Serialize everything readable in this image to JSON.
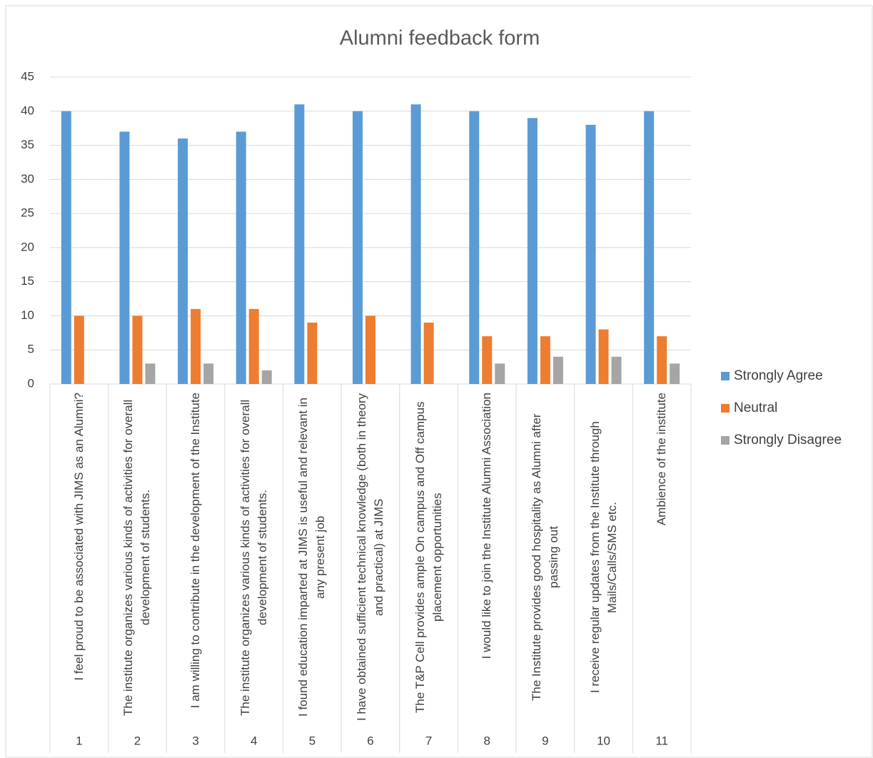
{
  "chart_data": {
    "type": "bar",
    "title": "Alumni feedback form",
    "categories": [
      "I feel proud to be associated with JIMS as an Alumni?",
      "The institute organizes various kinds of activities for overall development of students.",
      "I am willing to contribute in the development of the Institute",
      "The institute organizes various kinds of activities for overall development of students.",
      "I found education imparted at JIMS is useful and relevant in any present job",
      "I have obtained sufficient technical knowledge (both in theory and practical) at JIMS",
      "The T&P Cell provides ample On campus and Off campus placement opportunities",
      "I would like to join the Institute Alumni Association",
      "The Institute provides good hospitality as Alumni after passing out",
      "I receive regular updates from the Institute through Mails/Calls/SMS etc.",
      "Ambience of the institute"
    ],
    "category_numbers": [
      "1",
      "2",
      "3",
      "4",
      "5",
      "6",
      "7",
      "8",
      "9",
      "10",
      "11"
    ],
    "series": [
      {
        "name": "Strongly Agree",
        "color": "#5b9bd5",
        "values": [
          40,
          37,
          36,
          37,
          41,
          40,
          41,
          40,
          39,
          38,
          40
        ]
      },
      {
        "name": "Neutral",
        "color": "#ed7d31",
        "values": [
          10,
          10,
          11,
          11,
          9,
          10,
          9,
          7,
          7,
          8,
          7
        ]
      },
      {
        "name": "Strongly Disagree",
        "color": "#a5a5a5",
        "values": [
          0,
          3,
          3,
          2,
          0,
          0,
          0,
          3,
          4,
          4,
          3
        ]
      }
    ],
    "ylim": [
      0,
      45
    ],
    "yticks": [
      0,
      5,
      10,
      15,
      20,
      25,
      30,
      35,
      40,
      45
    ],
    "grid": true,
    "legend": "right"
  }
}
